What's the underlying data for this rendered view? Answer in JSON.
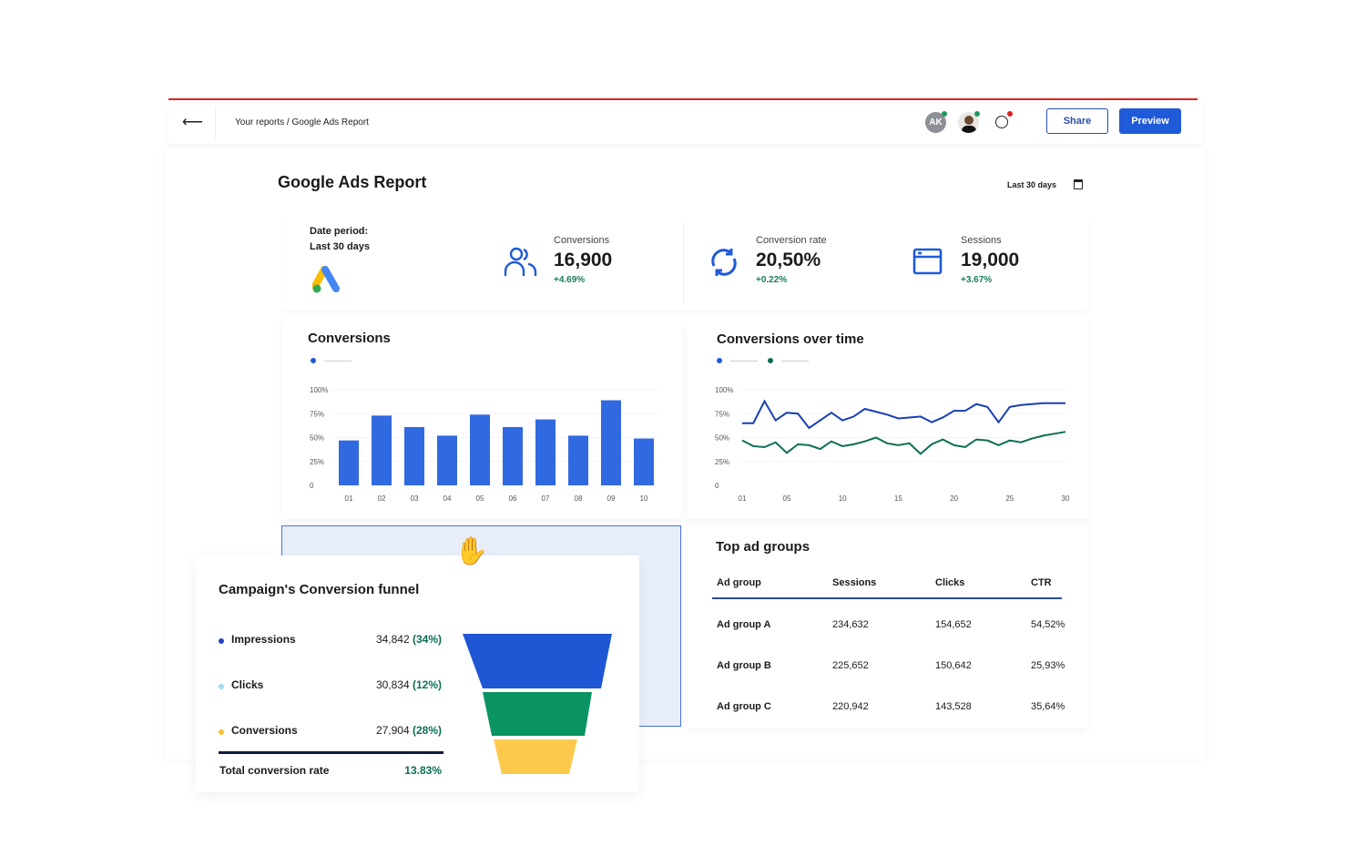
{
  "header": {
    "breadcrumb": "Your reports / Google Ads Report",
    "avatar_initials": "AK",
    "share_label": "Share",
    "preview_label": "Preview"
  },
  "report": {
    "title": "Google Ads Report",
    "date_filter": "Last 30 days"
  },
  "kpis": {
    "date_period_label": "Date period:",
    "date_period_value": "Last 30 days",
    "items": [
      {
        "label": "Conversions",
        "value": "16,900",
        "delta": "+4.69%",
        "icon": "users-icon"
      },
      {
        "label": "Conversion rate",
        "value": "20,50%",
        "delta": "+0.22%",
        "icon": "refresh-icon"
      },
      {
        "label": "Sessions",
        "value": "19,000",
        "delta": "+3.67%",
        "icon": "browser-window-icon"
      }
    ]
  },
  "colors": {
    "accent": "#1f5ad8",
    "green": "#0b6e55",
    "funnel_blue": "#1f56d4",
    "funnel_green": "#0a9462",
    "funnel_yellow": "#fdc94d",
    "topline": "#e02020"
  },
  "chart_data": [
    {
      "type": "bar",
      "title": "Conversions",
      "categories": [
        "01",
        "02",
        "03",
        "04",
        "05",
        "06",
        "07",
        "08",
        "09",
        "10"
      ],
      "values": [
        47,
        73,
        61,
        52,
        74,
        61,
        69,
        52,
        89,
        49
      ],
      "yticks": [
        "0",
        "25%",
        "50%",
        "75%",
        "100%"
      ],
      "ylim": [
        0,
        100
      ],
      "color": "#3169e0"
    },
    {
      "type": "line",
      "title": "Conversions over time",
      "x": [
        1,
        2,
        3,
        4,
        5,
        6,
        7,
        8,
        9,
        10,
        11,
        12,
        13,
        14,
        15,
        16,
        17,
        18,
        19,
        20,
        21,
        22,
        23,
        24,
        25,
        26,
        27,
        28,
        29,
        30
      ],
      "xticks": [
        "01",
        "05",
        "10",
        "15",
        "20",
        "25",
        "30"
      ],
      "yticks": [
        "0",
        "25%",
        "50%",
        "75%",
        "100%"
      ],
      "ylim": [
        0,
        100
      ],
      "series": [
        {
          "color": "#1a3fb5",
          "values": [
            65,
            65,
            88,
            68,
            76,
            75,
            60,
            68,
            76,
            68,
            72,
            80,
            77,
            74,
            70,
            71,
            72,
            66,
            71,
            78,
            78,
            85,
            82,
            66,
            82,
            84,
            85,
            86,
            86,
            86
          ]
        },
        {
          "color": "#0b6e55",
          "values": [
            47,
            41,
            40,
            45,
            34,
            43,
            42,
            38,
            46,
            41,
            43,
            46,
            50,
            44,
            42,
            44,
            33,
            43,
            48,
            42,
            40,
            48,
            47,
            42,
            47,
            45,
            49,
            52,
            54,
            56
          ]
        }
      ]
    }
  ],
  "funnel": {
    "title": "Campaign's Conversion funnel",
    "rows": [
      {
        "label": "Impressions",
        "value": "34,842",
        "pct": "(34%)",
        "dot": "#1f47c6"
      },
      {
        "label": "Clicks",
        "value": "30,834",
        "pct": "(12%)",
        "dot": "#9fdcef"
      },
      {
        "label": "Conversions",
        "value": "27,904",
        "pct": "(28%)",
        "dot": "#f6c12f"
      }
    ],
    "total_label": "Total conversion rate",
    "total_value": "13.83%"
  },
  "table": {
    "title": "Top ad groups",
    "columns": [
      "Ad group",
      "Sessions",
      "Clicks",
      "CTR"
    ],
    "rows": [
      [
        "Ad group A",
        "234,632",
        "154,652",
        "54,52%"
      ],
      [
        "Ad group B",
        "225,652",
        "150,642",
        "25,93%"
      ],
      [
        "Ad group C",
        "220,942",
        "143,528",
        "35,64%"
      ]
    ]
  }
}
